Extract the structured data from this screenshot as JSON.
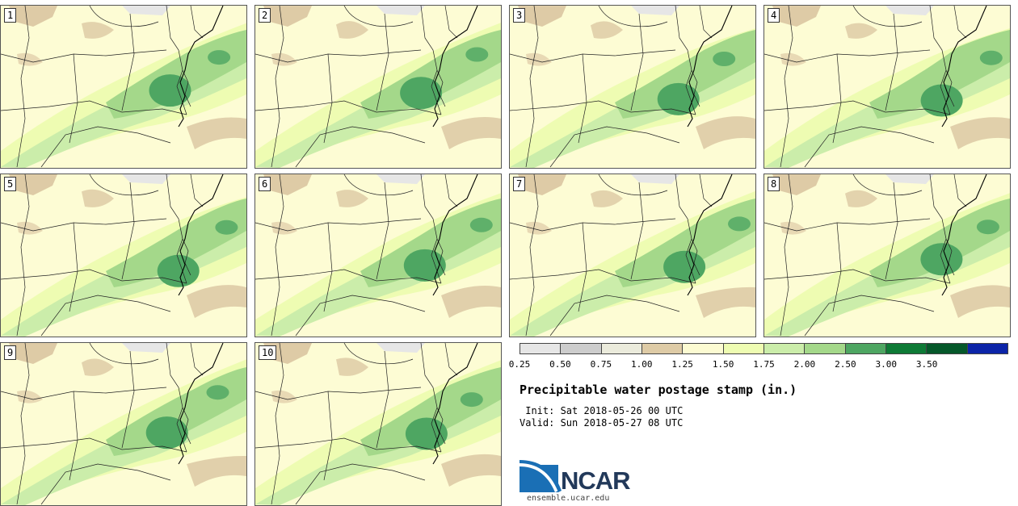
{
  "panels": [
    {
      "label": "1"
    },
    {
      "label": "2"
    },
    {
      "label": "3"
    },
    {
      "label": "4"
    },
    {
      "label": "5"
    },
    {
      "label": "6"
    },
    {
      "label": "7"
    },
    {
      "label": "8"
    },
    {
      "label": "9"
    },
    {
      "label": "10"
    }
  ],
  "colorbar": {
    "colors": [
      "#e6e6e6",
      "#cdcdcd",
      "#ebebdc",
      "#decba6",
      "#fcfbd2",
      "#eefcb2",
      "#cbedaa",
      "#a4d88a",
      "#4ea662",
      "#0e7a36",
      "#05582a",
      "#0c24a8"
    ],
    "ticks": [
      "0.25",
      "0.50",
      "0.75",
      "1.00",
      "1.25",
      "1.50",
      "1.75",
      "2.00",
      "2.50",
      "3.00",
      "3.50"
    ]
  },
  "title": "Precipitable water postage stamp (in.)",
  "init": " Init: Sat 2018-05-26 00 UTC",
  "valid": "Valid: Sun 2018-05-27 08 UTC",
  "logo": {
    "text": "NCAR",
    "url": "ensemble.ucar.edu",
    "icon": "ncar-wave-logo"
  }
}
